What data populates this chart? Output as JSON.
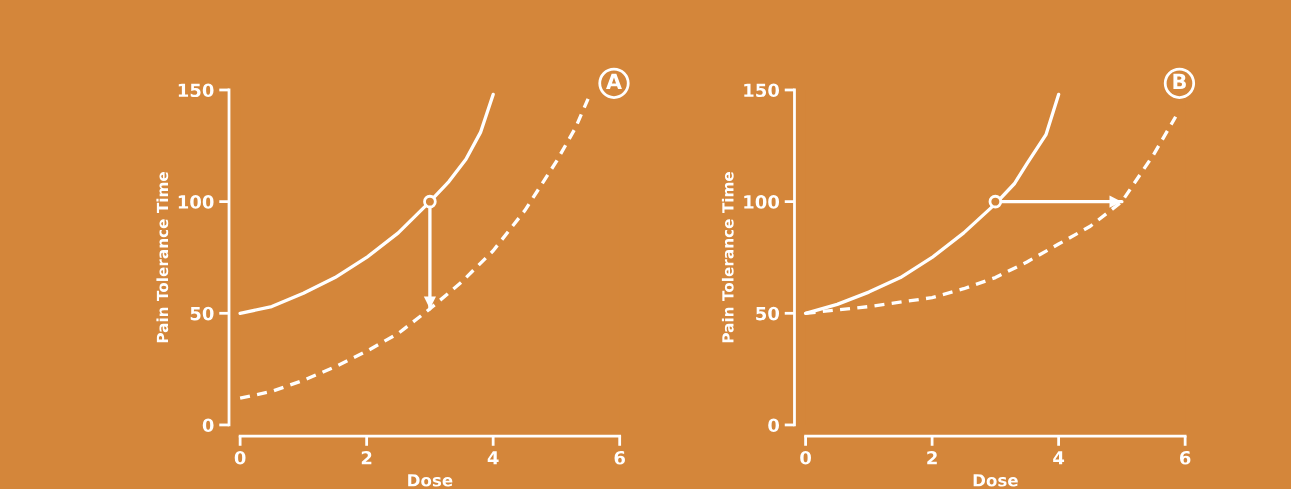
{
  "chart_data": [
    {
      "type": "line",
      "title": "A",
      "xlabel": "Dose",
      "ylabel": "Pain Tolerance Time",
      "xlim": [
        0,
        6
      ],
      "xticks": [
        0,
        2,
        4,
        6
      ],
      "ylim": [
        0,
        150
      ],
      "yticks": [
        0,
        50,
        100,
        150
      ],
      "series": [
        {
          "color": "#ffffff",
          "line_style": "solid",
          "x": [
            0,
            0.5,
            1,
            1.5,
            2,
            2.5,
            3,
            3.3,
            3.57,
            3.8,
            4
          ],
          "values": [
            50,
            53,
            59,
            66,
            75,
            86,
            100,
            109,
            119,
            131,
            148
          ]
        },
        {
          "color": "#ffffff",
          "line_style": "dashed",
          "x": [
            0,
            0.5,
            1,
            1.5,
            2,
            2.5,
            3,
            3.5,
            4,
            4.5,
            5,
            5.3,
            5.5
          ],
          "values": [
            12,
            15,
            20,
            26,
            33,
            41,
            52,
            64,
            78,
            96,
            118,
            133,
            146
          ]
        },
        {
          "type": "scatter",
          "color": "#ffffff",
          "marker": "circle",
          "x": [
            3
          ],
          "values": [
            100
          ]
        },
        {
          "color": "#ffffff",
          "line_style": "solid",
          "x": [
            3,
            3
          ],
          "values": [
            100,
            52
          ]
        }
      ]
    },
    {
      "type": "line",
      "title": "B",
      "xlabel": "Dose",
      "ylabel": "Pain Tolerance Time",
      "xlim": [
        0,
        6
      ],
      "xticks": [
        0,
        2,
        4,
        6
      ],
      "ylim": [
        0,
        150
      ],
      "yticks": [
        0,
        50,
        100,
        150
      ],
      "series": [
        {
          "color": "#ffffff",
          "line_style": "solid",
          "x": [
            0,
            0.5,
            1,
            1.5,
            2,
            2.5,
            3,
            3.3,
            3.5,
            3.8,
            4
          ],
          "values": [
            50,
            54,
            59.5,
            66,
            75,
            86,
            99,
            108,
            117,
            130,
            148
          ]
        },
        {
          "color": "#ffffff",
          "line_style": "dashed",
          "x": [
            0,
            1,
            2,
            2.5,
            3,
            3.5,
            4,
            4.5,
            5,
            5.5,
            5.85
          ],
          "values": [
            50,
            53,
            57,
            61,
            66,
            73,
            81,
            89,
            100,
            121,
            138
          ]
        },
        {
          "type": "scatter",
          "color": "#ffffff",
          "marker": "circle",
          "x": [
            3
          ],
          "values": [
            100
          ]
        },
        {
          "color": "#ffffff",
          "line_style": "solid",
          "x": [
            3,
            5
          ],
          "values": [
            100,
            100
          ]
        }
      ]
    }
  ]
}
